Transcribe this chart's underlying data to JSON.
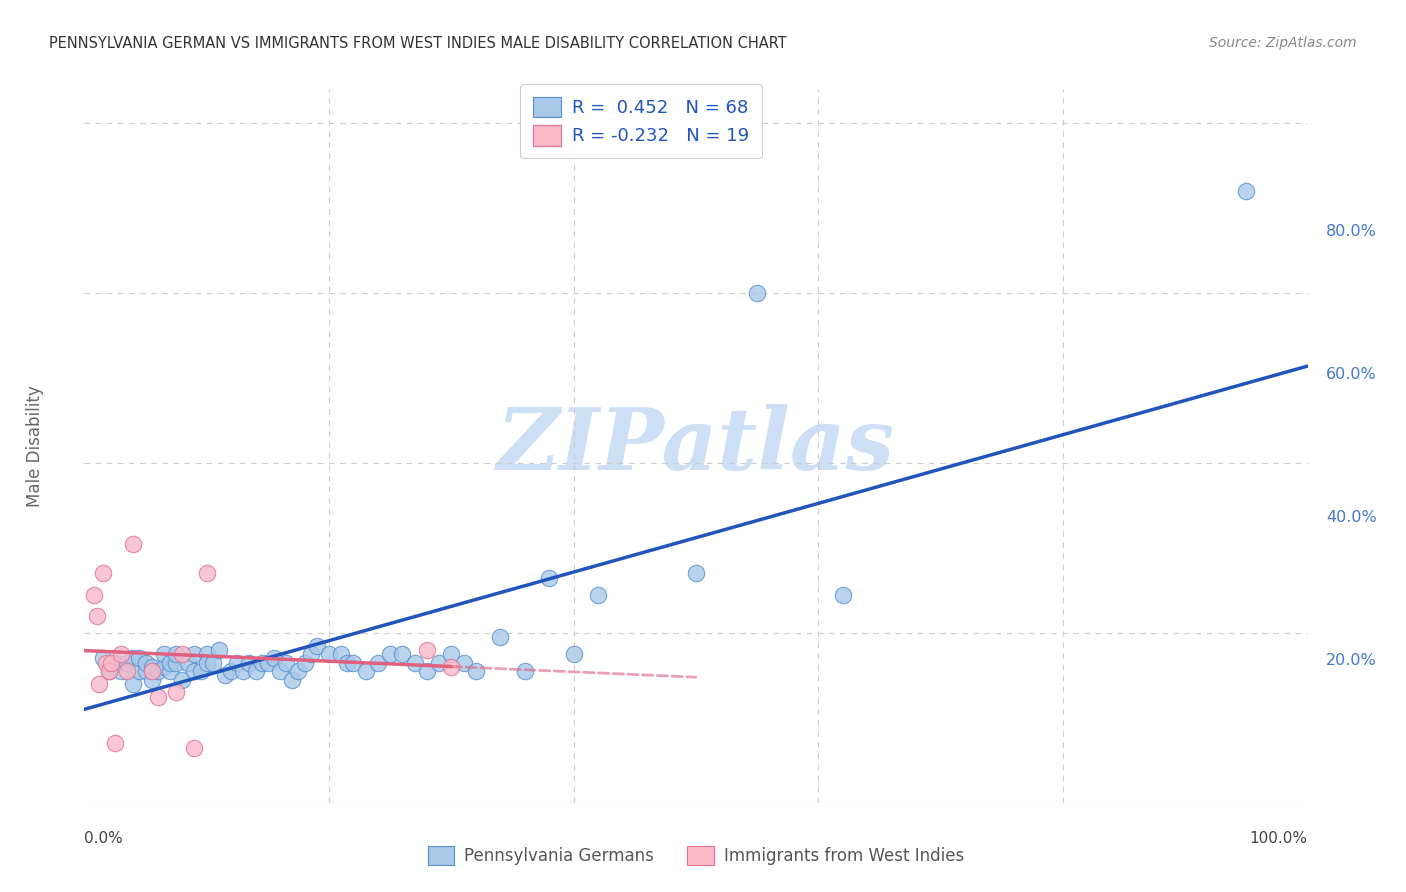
{
  "title": "PENNSYLVANIA GERMAN VS IMMIGRANTS FROM WEST INDIES MALE DISABILITY CORRELATION CHART",
  "source": "Source: ZipAtlas.com",
  "ylabel": "Male Disability",
  "watermark_text": "ZIPatlas",
  "bg_color": "#ffffff",
  "blue_scatter_color": "#a8c8e8",
  "blue_scatter_edge": "#5590d0",
  "blue_line_color": "#2255bb",
  "pink_scatter_color": "#f8b8c8",
  "pink_scatter_edge": "#e07090",
  "pink_line_color": "#e06080",
  "grid_color": "#cccccc",
  "ytick_color": "#4477cc",
  "title_color": "#333333",
  "source_color": "#888888",
  "ylabel_color": "#666666",
  "legend_label_blue": "Pennsylvania Germans",
  "legend_label_pink": "Immigrants from West Indies",
  "blue_x": [
    0.015,
    0.02,
    0.025,
    0.03,
    0.035,
    0.04,
    0.04,
    0.045,
    0.045,
    0.05,
    0.05,
    0.055,
    0.055,
    0.06,
    0.065,
    0.065,
    0.07,
    0.07,
    0.075,
    0.075,
    0.08,
    0.085,
    0.09,
    0.09,
    0.095,
    0.1,
    0.1,
    0.105,
    0.11,
    0.115,
    0.12,
    0.125,
    0.13,
    0.135,
    0.14,
    0.145,
    0.15,
    0.155,
    0.16,
    0.165,
    0.17,
    0.175,
    0.18,
    0.185,
    0.19,
    0.2,
    0.21,
    0.215,
    0.22,
    0.23,
    0.24,
    0.25,
    0.26,
    0.27,
    0.28,
    0.29,
    0.3,
    0.31,
    0.32,
    0.34,
    0.36,
    0.38,
    0.4,
    0.42,
    0.5,
    0.55,
    0.62,
    0.95
  ],
  "blue_y": [
    0.17,
    0.155,
    0.165,
    0.155,
    0.165,
    0.17,
    0.14,
    0.155,
    0.17,
    0.155,
    0.165,
    0.145,
    0.16,
    0.155,
    0.16,
    0.175,
    0.155,
    0.165,
    0.165,
    0.175,
    0.145,
    0.165,
    0.155,
    0.175,
    0.155,
    0.175,
    0.165,
    0.165,
    0.18,
    0.15,
    0.155,
    0.165,
    0.155,
    0.165,
    0.155,
    0.165,
    0.165,
    0.17,
    0.155,
    0.165,
    0.145,
    0.155,
    0.165,
    0.175,
    0.185,
    0.175,
    0.175,
    0.165,
    0.165,
    0.155,
    0.165,
    0.175,
    0.175,
    0.165,
    0.155,
    0.165,
    0.175,
    0.165,
    0.155,
    0.195,
    0.155,
    0.265,
    0.175,
    0.245,
    0.27,
    0.6,
    0.245,
    0.72
  ],
  "pink_x": [
    0.008,
    0.01,
    0.012,
    0.015,
    0.018,
    0.02,
    0.022,
    0.025,
    0.03,
    0.035,
    0.04,
    0.055,
    0.06,
    0.075,
    0.08,
    0.09,
    0.1,
    0.28,
    0.3
  ],
  "pink_y": [
    0.245,
    0.22,
    0.14,
    0.27,
    0.165,
    0.155,
    0.165,
    0.07,
    0.175,
    0.155,
    0.305,
    0.155,
    0.125,
    0.13,
    0.175,
    0.065,
    0.27,
    0.18,
    0.16
  ]
}
